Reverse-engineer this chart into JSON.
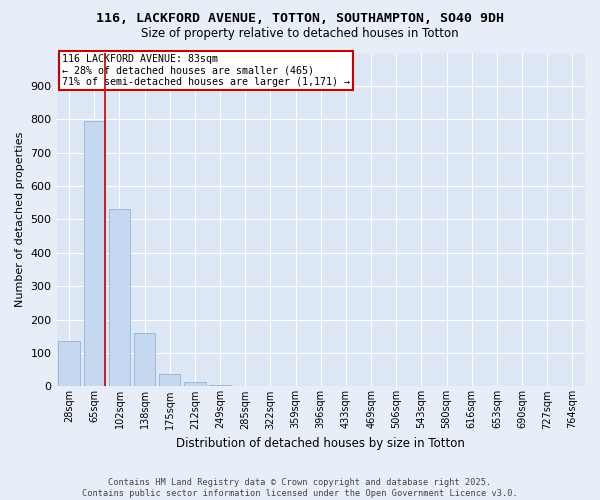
{
  "title_line1": "116, LACKFORD AVENUE, TOTTON, SOUTHAMPTON, SO40 9DH",
  "title_line2": "Size of property relative to detached houses in Totton",
  "xlabel": "Distribution of detached houses by size in Totton",
  "ylabel": "Number of detached properties",
  "categories": [
    "28sqm",
    "65sqm",
    "102sqm",
    "138sqm",
    "175sqm",
    "212sqm",
    "249sqm",
    "285sqm",
    "322sqm",
    "359sqm",
    "396sqm",
    "433sqm",
    "469sqm",
    "506sqm",
    "543sqm",
    "580sqm",
    "616sqm",
    "653sqm",
    "690sqm",
    "727sqm",
    "764sqm"
  ],
  "values": [
    135,
    795,
    530,
    160,
    37,
    12,
    3,
    0,
    0,
    0,
    0,
    0,
    0,
    0,
    0,
    0,
    0,
    0,
    0,
    0,
    0
  ],
  "bar_color": "#c5d8ef",
  "bar_edge_color": "#9ab8d8",
  "bg_color": "#dce6f5",
  "grid_color": "#ffffff",
  "property_label": "116 LACKFORD AVENUE: 83sqm",
  "annotation_line2": "← 28% of detached houses are smaller (465)",
  "annotation_line3": "71% of semi-detached houses are larger (1,171) →",
  "annotation_box_color": "#cc0000",
  "vline_color": "#cc0000",
  "ylim": [
    0,
    1000
  ],
  "yticks": [
    0,
    100,
    200,
    300,
    400,
    500,
    600,
    700,
    800,
    900
  ],
  "fig_bg_color": "#e8eef8",
  "footer_line1": "Contains HM Land Registry data © Crown copyright and database right 2025.",
  "footer_line2": "Contains public sector information licensed under the Open Government Licence v3.0."
}
